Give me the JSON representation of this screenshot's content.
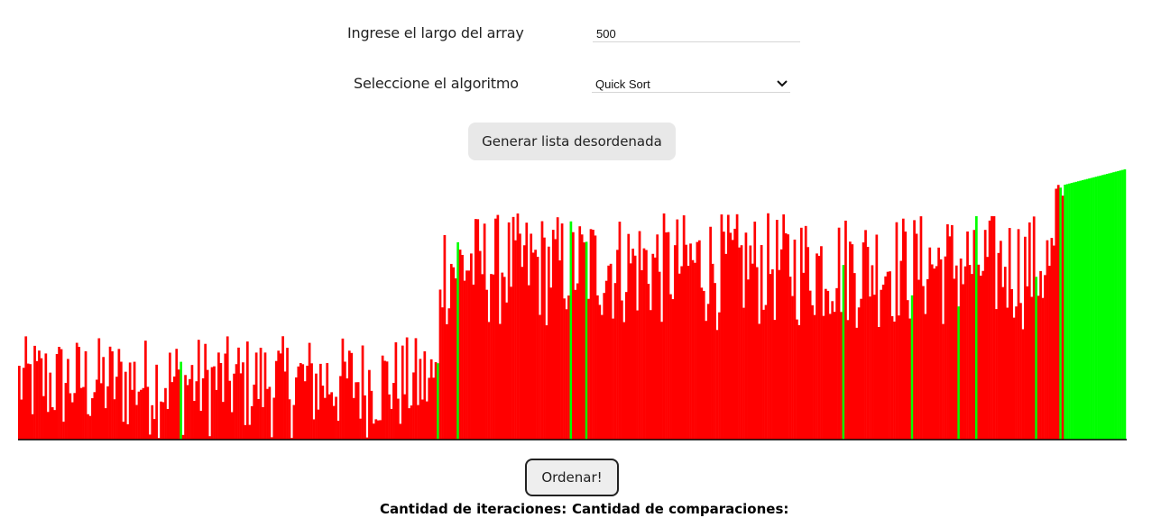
{
  "form": {
    "length_label": "Ingrese el largo del array",
    "length_value": "500",
    "algorithm_label": "Seleccione el algoritmo",
    "algorithm_selected": "Quick Sort",
    "generate_label": "Generar lista desordenada"
  },
  "actions": {
    "sort_label": "Ordenar!"
  },
  "stats": {
    "iterations_label": "Cantidad de iteraciones:",
    "comparisons_label": "Cantidad de comparaciones:"
  },
  "colors": {
    "unsorted": "#ff0000",
    "sorted": "#00ff00",
    "axis": "#000000"
  },
  "chart_data": {
    "type": "bar",
    "bar_count": 500,
    "title": "",
    "xlabel": "",
    "ylabel": "",
    "grid": false,
    "legend": "none",
    "ylim": [
      0,
      300
    ],
    "series": [
      {
        "segment": "left-unsorted",
        "from": 0,
        "to": 190,
        "value_range": [
          0,
          115
        ],
        "color": "unsorted"
      },
      {
        "segment": "middle-unsorted",
        "from": 190,
        "to": 468,
        "value_range": [
          120,
          252
        ],
        "color": "unsorted"
      },
      {
        "segment": "right-unsorted",
        "from": 468,
        "to": 472,
        "value_range": [
          262,
          284
        ],
        "color": "unsorted"
      },
      {
        "segment": "sorted-tail",
        "from": 472,
        "to": 500,
        "value_range": [
          283,
          300
        ],
        "color": "sorted"
      }
    ],
    "sorted_pivot_indices": [
      73,
      189,
      198,
      249,
      256,
      372,
      403,
      424,
      432,
      459,
      470
    ]
  }
}
